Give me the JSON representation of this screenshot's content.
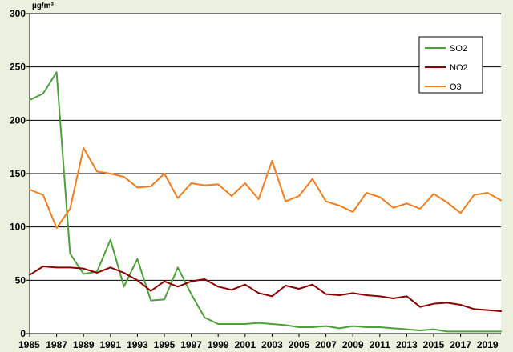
{
  "chart_data": {
    "type": "line",
    "ylabel": "µg/m³",
    "ylim": [
      0,
      300
    ],
    "yticks": [
      0,
      50,
      100,
      150,
      200,
      250,
      300
    ],
    "xlim": [
      1985,
      2020
    ],
    "xticks": [
      1985,
      1987,
      1989,
      1991,
      1993,
      1995,
      1997,
      1999,
      2001,
      2003,
      2005,
      2007,
      2009,
      2011,
      2013,
      2015,
      2017,
      2019
    ],
    "grid": "horizontal",
    "legend_position": "top-right",
    "x": [
      1985,
      1986,
      1987,
      1988,
      1989,
      1990,
      1991,
      1992,
      1993,
      1994,
      1995,
      1996,
      1997,
      1998,
      1999,
      2000,
      2001,
      2002,
      2003,
      2004,
      2005,
      2006,
      2007,
      2008,
      2009,
      2010,
      2011,
      2012,
      2013,
      2014,
      2015,
      2016,
      2017,
      2018,
      2019,
      2020
    ],
    "series": [
      {
        "name": "SO2",
        "color": "#4da03a",
        "values": [
          219,
          225,
          245,
          75,
          56,
          58,
          88,
          44,
          70,
          31,
          32,
          62,
          37,
          15,
          9,
          9,
          9,
          10,
          9,
          8,
          6,
          6,
          7,
          5,
          7,
          6,
          6,
          5,
          4,
          3,
          4,
          2,
          2,
          2,
          2,
          2
        ]
      },
      {
        "name": "NO2",
        "color": "#8b0000",
        "values": [
          55,
          63,
          62,
          62,
          61,
          57,
          62,
          57,
          50,
          40,
          49,
          44,
          49,
          51,
          44,
          41,
          46,
          38,
          35,
          45,
          42,
          46,
          37,
          36,
          38,
          36,
          35,
          33,
          35,
          25,
          28,
          29,
          27,
          23,
          22,
          21
        ]
      },
      {
        "name": "O3",
        "color": "#f07d1e",
        "values": [
          135,
          130,
          99,
          117,
          174,
          152,
          150,
          147,
          137,
          138,
          150,
          127,
          141,
          139,
          140,
          129,
          141,
          126,
          162,
          124,
          129,
          145,
          124,
          120,
          114,
          132,
          128,
          118,
          122,
          117,
          131,
          123,
          113,
          130,
          132,
          125
        ]
      }
    ]
  }
}
